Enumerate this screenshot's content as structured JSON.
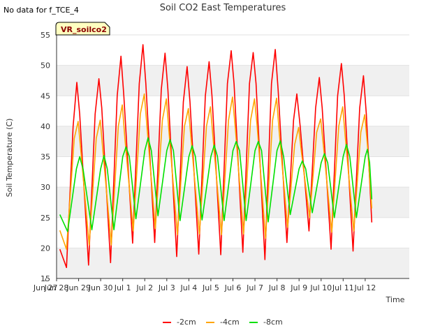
{
  "note": "No data for f_TCE_4",
  "site_label": "VR_soilco2",
  "colors": {
    "band": "#f0f0f0",
    "grid": "#e2e2e2",
    "site_box_fill": "#ffffc0",
    "site_box_stroke": "#000000",
    "axis": "#333333"
  },
  "chart_data": {
    "type": "line",
    "title": "Soil CO2 East Temperatures",
    "xlabel": "Time",
    "ylabel": "Soil Temperature (C)",
    "xlim": [
      0,
      16
    ],
    "ylim": [
      15,
      55
    ],
    "x_unit": "days from Jun 27 00:00",
    "xticks": [
      {
        "x": -0.5,
        "label": "Jun 27"
      },
      {
        "x": 0,
        "label": "Jun 28"
      },
      {
        "x": 1,
        "label": "Jun 29"
      },
      {
        "x": 2,
        "label": "Jun 30"
      },
      {
        "x": 3,
        "label": "Jul 1"
      },
      {
        "x": 4,
        "label": "Jul 2"
      },
      {
        "x": 5,
        "label": "Jul 3"
      },
      {
        "x": 6,
        "label": "Jul 4"
      },
      {
        "x": 7,
        "label": "Jul 5"
      },
      {
        "x": 8,
        "label": "Jul 6"
      },
      {
        "x": 9,
        "label": "Jul 7"
      },
      {
        "x": 10,
        "label": "Jul 8"
      },
      {
        "x": 11,
        "label": "Jul 9"
      },
      {
        "x": 12,
        "label": "Jul 10"
      },
      {
        "x": 13,
        "label": "Jul 11"
      },
      {
        "x": 14,
        "label": "Jul 12"
      }
    ],
    "yticks": [
      15,
      20,
      25,
      30,
      35,
      40,
      45,
      50,
      55
    ],
    "grid": true,
    "legend_position": "bottom",
    "series": [
      {
        "name": "-2cm",
        "color": "#ff0000",
        "points": [
          [
            0.15,
            19.8
          ],
          [
            0.45,
            16.8
          ],
          [
            0.75,
            40.0
          ],
          [
            0.92,
            47.2
          ],
          [
            1.05,
            42
          ],
          [
            1.45,
            17.2
          ],
          [
            1.75,
            42
          ],
          [
            1.92,
            47.8
          ],
          [
            2.05,
            43
          ],
          [
            2.45,
            17.6
          ],
          [
            2.75,
            45
          ],
          [
            2.92,
            51.5
          ],
          [
            3.05,
            45
          ],
          [
            3.45,
            20.8
          ],
          [
            3.75,
            47
          ],
          [
            3.92,
            53.4
          ],
          [
            4.05,
            47
          ],
          [
            4.45,
            20.9
          ],
          [
            4.75,
            46
          ],
          [
            4.92,
            52.0
          ],
          [
            5.05,
            46
          ],
          [
            5.45,
            18.6
          ],
          [
            5.75,
            44
          ],
          [
            5.92,
            49.8
          ],
          [
            6.05,
            44
          ],
          [
            6.45,
            19.0
          ],
          [
            6.75,
            45
          ],
          [
            6.92,
            50.6
          ],
          [
            7.05,
            45
          ],
          [
            7.45,
            18.9
          ],
          [
            7.75,
            47
          ],
          [
            7.92,
            52.4
          ],
          [
            8.05,
            47
          ],
          [
            8.45,
            19.3
          ],
          [
            8.75,
            47
          ],
          [
            8.92,
            52.1
          ],
          [
            9.05,
            47
          ],
          [
            9.45,
            18.1
          ],
          [
            9.75,
            47
          ],
          [
            9.92,
            52.6
          ],
          [
            10.05,
            46
          ],
          [
            10.45,
            20.9
          ],
          [
            10.75,
            41
          ],
          [
            10.9,
            45.3
          ],
          [
            11.05,
            40
          ],
          [
            11.45,
            22.8
          ],
          [
            11.75,
            43
          ],
          [
            11.92,
            48.0
          ],
          [
            12.05,
            43
          ],
          [
            12.45,
            19.8
          ],
          [
            12.75,
            45
          ],
          [
            12.92,
            50.3
          ],
          [
            13.05,
            45
          ],
          [
            13.45,
            19.5
          ],
          [
            13.75,
            43
          ],
          [
            13.92,
            48.3
          ],
          [
            14.05,
            42
          ],
          [
            14.3,
            24.2
          ]
        ]
      },
      {
        "name": "-4cm",
        "color": "#ffa500",
        "points": [
          [
            0.15,
            22.9
          ],
          [
            0.45,
            19.8
          ],
          [
            0.8,
            38
          ],
          [
            0.98,
            40.8
          ],
          [
            1.1,
            36
          ],
          [
            1.48,
            20.5
          ],
          [
            1.8,
            38
          ],
          [
            1.98,
            41.0
          ],
          [
            2.1,
            36
          ],
          [
            2.48,
            20.5
          ],
          [
            2.8,
            40
          ],
          [
            2.98,
            43.5
          ],
          [
            3.1,
            38
          ],
          [
            3.48,
            22.8
          ],
          [
            3.8,
            42
          ],
          [
            3.98,
            45.3
          ],
          [
            4.1,
            40
          ],
          [
            4.48,
            23.2
          ],
          [
            4.8,
            41
          ],
          [
            4.98,
            44.5
          ],
          [
            5.1,
            39
          ],
          [
            5.48,
            22.2
          ],
          [
            5.8,
            40
          ],
          [
            5.98,
            42.9
          ],
          [
            6.1,
            38
          ],
          [
            6.48,
            22.3
          ],
          [
            6.8,
            40
          ],
          [
            6.98,
            43.2
          ],
          [
            7.1,
            38
          ],
          [
            7.48,
            22.2
          ],
          [
            7.8,
            41
          ],
          [
            7.98,
            44.8
          ],
          [
            8.1,
            40
          ],
          [
            8.48,
            22.3
          ],
          [
            8.8,
            41
          ],
          [
            8.98,
            44.5
          ],
          [
            9.1,
            40
          ],
          [
            9.48,
            21.6
          ],
          [
            9.8,
            41
          ],
          [
            9.98,
            44.6
          ],
          [
            10.1,
            39
          ],
          [
            10.48,
            23.4
          ],
          [
            10.8,
            37
          ],
          [
            10.98,
            39.8
          ],
          [
            11.1,
            36
          ],
          [
            11.48,
            25.0
          ],
          [
            11.8,
            39
          ],
          [
            11.98,
            41.2
          ],
          [
            12.1,
            37
          ],
          [
            12.48,
            22.6
          ],
          [
            12.8,
            40
          ],
          [
            12.98,
            43.2
          ],
          [
            13.1,
            38
          ],
          [
            13.48,
            22.8
          ],
          [
            13.8,
            39
          ],
          [
            13.98,
            41.9
          ],
          [
            14.1,
            37
          ],
          [
            14.3,
            26.5
          ]
        ]
      },
      {
        "name": "-8cm",
        "color": "#00e000",
        "points": [
          [
            0.15,
            25.5
          ],
          [
            0.5,
            22.7
          ],
          [
            0.9,
            33
          ],
          [
            1.05,
            35.0
          ],
          [
            1.2,
            33
          ],
          [
            1.6,
            23.0
          ],
          [
            2.0,
            33
          ],
          [
            2.15,
            35.2
          ],
          [
            2.3,
            33
          ],
          [
            2.6,
            23.0
          ],
          [
            3.0,
            35
          ],
          [
            3.15,
            36.6
          ],
          [
            3.3,
            35
          ],
          [
            3.6,
            24.8
          ],
          [
            4.0,
            36
          ],
          [
            4.15,
            38.1
          ],
          [
            4.3,
            36
          ],
          [
            4.6,
            25.3
          ],
          [
            5.0,
            36
          ],
          [
            5.15,
            37.8
          ],
          [
            5.3,
            36
          ],
          [
            5.6,
            24.5
          ],
          [
            6.0,
            35
          ],
          [
            6.15,
            36.8
          ],
          [
            6.3,
            35
          ],
          [
            6.6,
            24.6
          ],
          [
            7.0,
            35
          ],
          [
            7.15,
            36.9
          ],
          [
            7.3,
            35
          ],
          [
            7.6,
            24.5
          ],
          [
            8.0,
            36
          ],
          [
            8.15,
            37.5
          ],
          [
            8.3,
            36
          ],
          [
            8.6,
            24.5
          ],
          [
            9.0,
            36
          ],
          [
            9.15,
            37.5
          ],
          [
            9.3,
            36
          ],
          [
            9.6,
            24.3
          ],
          [
            10.0,
            36
          ],
          [
            10.15,
            37.6
          ],
          [
            10.3,
            35
          ],
          [
            10.6,
            25.5
          ],
          [
            11.0,
            33
          ],
          [
            11.15,
            34.3
          ],
          [
            11.3,
            33
          ],
          [
            11.6,
            25.8
          ],
          [
            12.0,
            34
          ],
          [
            12.15,
            35.5
          ],
          [
            12.3,
            34
          ],
          [
            12.6,
            25.0
          ],
          [
            13.0,
            35
          ],
          [
            13.15,
            37.0
          ],
          [
            13.3,
            35
          ],
          [
            13.6,
            25.0
          ],
          [
            14.0,
            35
          ],
          [
            14.1,
            36.2
          ],
          [
            14.2,
            34
          ],
          [
            14.3,
            28.0
          ]
        ]
      }
    ]
  }
}
